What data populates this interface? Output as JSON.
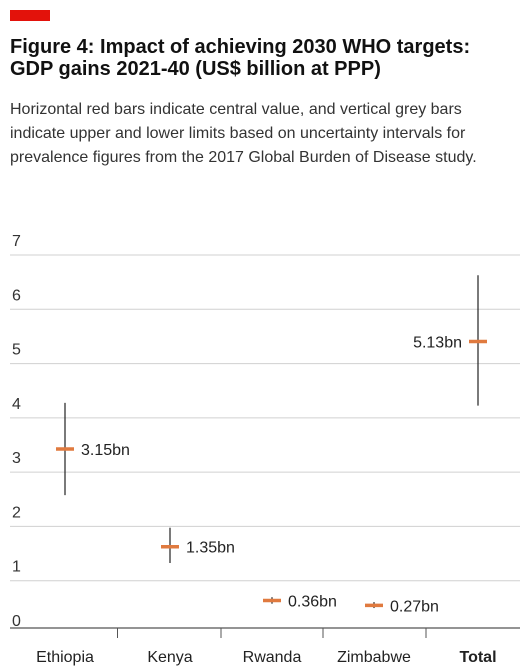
{
  "header": {
    "title_line1": "Figure 4: Impact of achieving 2030 WHO targets:",
    "title_line2": "GDP gains 2021-40 (US$ billion at PPP)",
    "subtitle": "Horizontal red bars indicate central value, and vertical grey bars indicate upper and lower limits based on uncertainty intervals for prevalence figures from the 2017 Global Burden of Disease study."
  },
  "colors": {
    "brand": "#e3120b",
    "central_bar": "#e07a3f",
    "range_bar": "#222222",
    "gridline": "#d0d0d0",
    "axis": "#555555"
  },
  "chart_data": {
    "type": "errorbar",
    "title": "Figure 4: Impact of achieving 2030 WHO targets: GDP gains 2021-40 (US$ billion at PPP)",
    "categories": [
      "Ethiopia",
      "Kenya",
      "Rwanda",
      "Zimbabwe",
      "Total"
    ],
    "bold_categories": [
      "Total"
    ],
    "values": [
      3.15,
      1.35,
      0.36,
      0.27,
      5.13
    ],
    "lower": [
      2.3,
      1.05,
      0.3,
      0.22,
      3.95
    ],
    "upper": [
      4.0,
      1.7,
      0.42,
      0.33,
      6.35
    ],
    "data_labels": [
      "3.15bn",
      "1.35bn",
      "0.36bn",
      "0.27bn",
      "5.13bn"
    ],
    "label_side": [
      "right",
      "right",
      "right",
      "right",
      "left"
    ],
    "yticks": [
      0,
      1,
      2,
      3,
      4,
      5,
      6,
      7
    ],
    "ylim": [
      0,
      7
    ],
    "grid": true
  }
}
